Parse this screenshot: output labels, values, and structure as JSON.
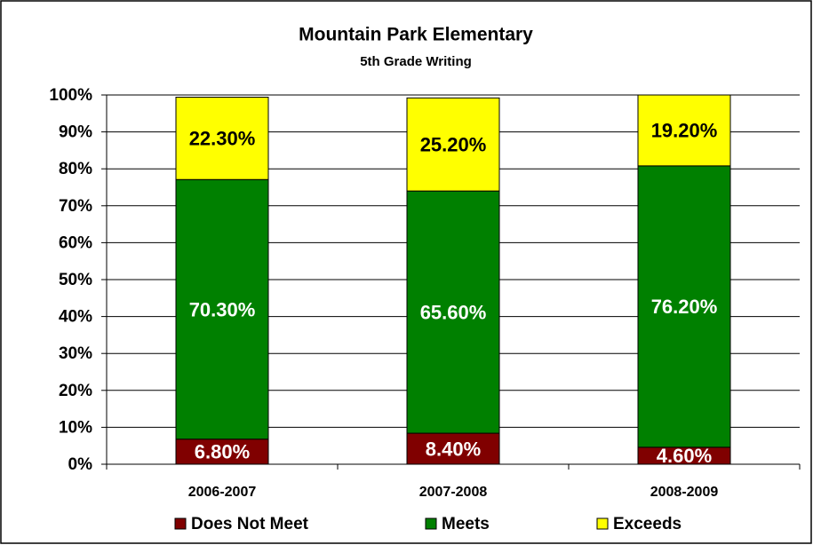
{
  "chart_data": {
    "type": "stacked_bar",
    "title": "Mountain Park Elementary",
    "subtitle": "5th Grade Writing",
    "categories": [
      "2006-2007",
      "2007-2008",
      "2008-2009"
    ],
    "series": [
      {
        "name": "Does Not Meet",
        "color": "#800000",
        "values": [
          6.8,
          8.4,
          4.6
        ],
        "value_labels": [
          "6.80%",
          "8.40%",
          "4.60%"
        ]
      },
      {
        "name": "Meets",
        "color": "#008000",
        "values": [
          70.3,
          65.6,
          76.2
        ],
        "value_labels": [
          "70.30%",
          "65.60%",
          "76.20%"
        ]
      },
      {
        "name": "Exceeds",
        "color": "#ffff00",
        "values": [
          22.3,
          25.2,
          19.2
        ],
        "value_labels": [
          "22.30%",
          "25.20%",
          "19.20%"
        ]
      }
    ],
    "ylim": [
      0,
      100
    ],
    "yticks": [
      {
        "value": 0,
        "label": "0%"
      },
      {
        "value": 10,
        "label": "10%"
      },
      {
        "value": 20,
        "label": "20%"
      },
      {
        "value": 30,
        "label": "30%"
      },
      {
        "value": 40,
        "label": "40%"
      },
      {
        "value": 50,
        "label": "50%"
      },
      {
        "value": 60,
        "label": "60%"
      },
      {
        "value": 70,
        "label": "70%"
      },
      {
        "value": 80,
        "label": "80%"
      },
      {
        "value": 90,
        "label": "90%"
      },
      {
        "value": 100,
        "label": "100%"
      }
    ],
    "grid": true,
    "legend": "bottom"
  }
}
